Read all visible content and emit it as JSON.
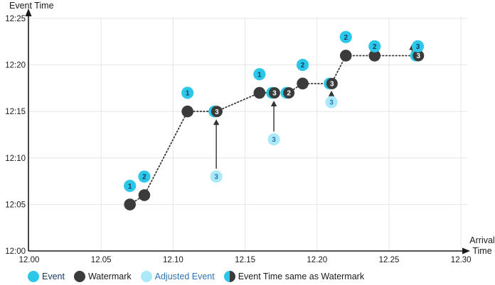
{
  "page": {
    "background": "#FFFFFF"
  },
  "axes": {
    "y_title": "Event Time",
    "x_title_line1": "Arrival",
    "x_title_line2": "Time"
  },
  "legend": {
    "items": [
      {
        "label": "Event",
        "type": "event"
      },
      {
        "label": "Watermark",
        "type": "watermark"
      },
      {
        "label": "Adjusted Event",
        "type": "adjusted"
      },
      {
        "label": "Event Time same as Watermark",
        "type": "same"
      }
    ]
  },
  "chart_data": {
    "type": "scatter",
    "title": "",
    "xlabel": "Arrival Time",
    "ylabel": "Event Time",
    "grid": true,
    "x_range": [
      12.0,
      12.3
    ],
    "y_range_minutes_after_1200": [
      0,
      25
    ],
    "x_ticks": [
      {
        "label": "12.00",
        "a": 12.0
      },
      {
        "label": "12.05",
        "a": 12.05
      },
      {
        "label": "12.10",
        "a": 12.1
      },
      {
        "label": "12.15",
        "a": 12.15
      },
      {
        "label": "12.20",
        "a": 12.2
      },
      {
        "label": "12.25",
        "a": 12.25
      },
      {
        "label": "12.30",
        "a": 12.3
      }
    ],
    "y_ticks": [
      {
        "label": "12:00",
        "t": 0
      },
      {
        "label": "12:05",
        "t": 5
      },
      {
        "label": "12:10",
        "t": 10
      },
      {
        "label": "12:15",
        "t": 15
      },
      {
        "label": "12:20",
        "t": 20
      },
      {
        "label": "12:25",
        "t": 25
      }
    ],
    "series": {
      "events": [
        {
          "label": "1",
          "arrival": 12.07,
          "event_time": "12:07",
          "t": 7
        },
        {
          "label": "2",
          "arrival": 12.08,
          "event_time": "12:08",
          "t": 8
        },
        {
          "label": "1",
          "arrival": 12.11,
          "event_time": "12:17",
          "t": 17
        },
        {
          "label": "1",
          "arrival": 12.16,
          "event_time": "12:19",
          "t": 19
        },
        {
          "label": "2",
          "arrival": 12.19,
          "event_time": "12:20",
          "t": 20
        },
        {
          "label": "2",
          "arrival": 12.22,
          "event_time": "12:23",
          "t": 23
        },
        {
          "label": "2",
          "arrival": 12.24,
          "event_time": "12:22",
          "t": 22
        },
        {
          "label": "3",
          "arrival": 12.27,
          "event_time": "12:22",
          "t": 22
        }
      ],
      "watermarks": [
        {
          "arrival": 12.07,
          "time": "12:05",
          "t": 5
        },
        {
          "arrival": 12.08,
          "time": "12:06",
          "t": 6
        },
        {
          "arrival": 12.11,
          "time": "12:15",
          "t": 15
        },
        {
          "arrival": 12.16,
          "time": "12:17",
          "t": 17
        },
        {
          "arrival": 12.19,
          "time": "12:18",
          "t": 18
        },
        {
          "arrival": 12.22,
          "time": "12:21",
          "t": 21
        },
        {
          "arrival": 12.24,
          "time": "12:21",
          "t": 21
        }
      ],
      "same_as_watermark": [
        {
          "label": "3",
          "arrival": 12.13,
          "time": "12:15",
          "t": 15
        },
        {
          "label": "3",
          "arrival": 12.17,
          "time": "12:17",
          "t": 17
        },
        {
          "label": "2",
          "arrival": 12.18,
          "time": "12:17",
          "t": 17
        },
        {
          "label": "3",
          "arrival": 12.21,
          "time": "12:18",
          "t": 18
        },
        {
          "label": "3",
          "arrival": 12.27,
          "time": "12:21",
          "t": 21
        }
      ],
      "adjusted_events": [
        {
          "label": "3",
          "arrival": 12.13,
          "original_time": "12:08",
          "t": 8,
          "adjusted_to": "12:15"
        },
        {
          "label": "3",
          "arrival": 12.17,
          "original_time": "12:12",
          "t": 12,
          "adjusted_to": "12:17"
        },
        {
          "label": "3",
          "arrival": 12.21,
          "original_time": "12:16",
          "t": 16,
          "adjusted_to": "12:18"
        }
      ]
    },
    "watermark_line": [
      [
        12.07,
        5
      ],
      [
        12.08,
        6
      ],
      [
        12.11,
        15
      ],
      [
        12.13,
        15
      ],
      [
        12.16,
        17
      ],
      [
        12.17,
        17
      ],
      [
        12.18,
        17
      ],
      [
        12.19,
        18
      ],
      [
        12.21,
        18
      ],
      [
        12.22,
        21
      ],
      [
        12.24,
        21
      ],
      [
        12.27,
        21
      ]
    ],
    "arrows": [
      {
        "a": 12.13,
        "from_t": 8,
        "to_t": 15,
        "dx": 0,
        "trim_from": 11,
        "trim_to": 12
      },
      {
        "a": 12.17,
        "from_t": 12,
        "to_t": 17,
        "dx": 0,
        "trim_from": 11,
        "trim_to": 12
      },
      {
        "a": 12.21,
        "from_t": 16,
        "to_t": 18,
        "dx": 0,
        "trim_from": 10,
        "trim_to": 11
      },
      {
        "a": 12.27,
        "from_t": 20.8,
        "to_t": 22.15,
        "dx": -8,
        "trim_from": 0,
        "trim_to": 0
      }
    ],
    "colors": {
      "event": "#2BC7E9",
      "watermark": "#3B3B3B",
      "adjusted": "#A9E9F8",
      "same_left": "#2BC7E9",
      "number_navy": "#17375E",
      "number_blue": "#2E75B6",
      "number_white": "#FFFFFF",
      "grid": "#E6E6E6",
      "axis": "#1a1a1a",
      "arrow": "#4a4a4a",
      "tick_text": "#1a1a1a"
    }
  }
}
